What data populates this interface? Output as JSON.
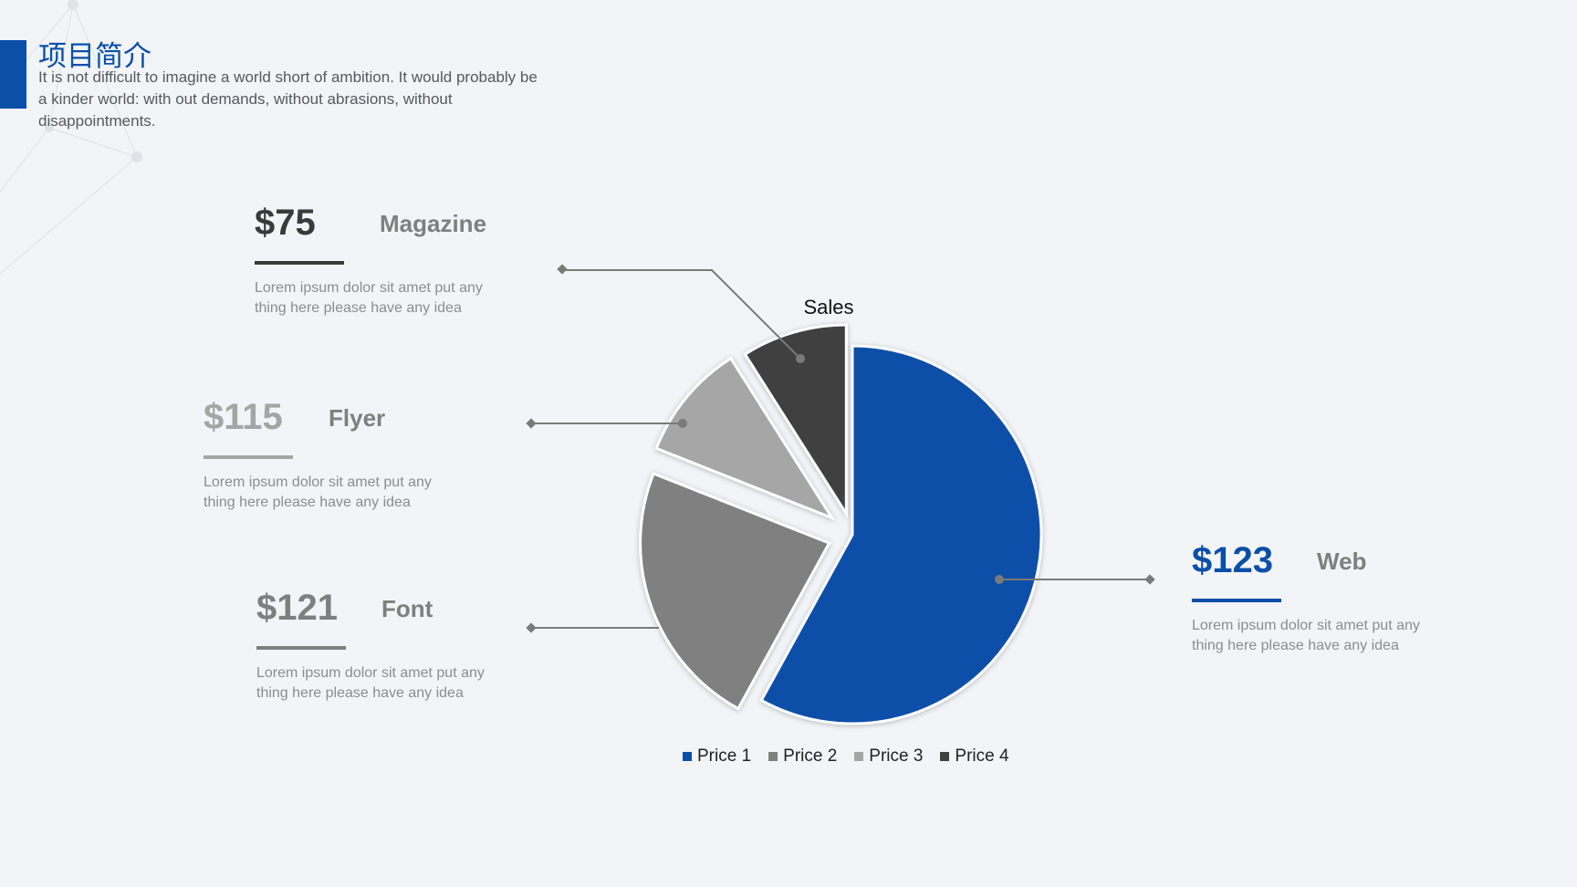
{
  "slide": {
    "title": "项目简介",
    "intro": "It is not difficult to imagine a world short of ambition. It would probably be a kinder world: with out demands, without abrasions, without disappointments."
  },
  "blocks": [
    {
      "id": "magazine",
      "price": "$75",
      "name": "Magazine",
      "desc": "Lorem ipsum dolor sit amet put any thing here please have any idea",
      "price_color": "#3a3a3a",
      "name_color": "#7f7f7f",
      "rule_color": "#3a3a3a"
    },
    {
      "id": "flyer",
      "price": "$115",
      "name": "Flyer",
      "desc": "Lorem ipsum dolor sit amet put any thing here please have any idea",
      "price_color": "#a5a5a5",
      "name_color": "#7f7f7f",
      "rule_color": "#a5a5a5"
    },
    {
      "id": "font",
      "price": "$121",
      "name": "Font",
      "desc": "Lorem ipsum dolor sit amet put any thing here please have any idea",
      "price_color": "#7f7f7f",
      "name_color": "#7f7f7f",
      "rule_color": "#7f7f7f"
    },
    {
      "id": "web",
      "price": "$123",
      "name": "Web",
      "desc": "Lorem ipsum dolor sit amet put any thing here please have any idea",
      "price_color": "#0b4fa8",
      "name_color": "#7f7f7f",
      "rule_color": "#0b4fa8"
    }
  ],
  "chart_data": {
    "type": "pie",
    "title": "Sales",
    "categories": [
      "Price 1",
      "Price 2",
      "Price 3",
      "Price 4"
    ],
    "values": [
      58,
      23,
      10,
      9
    ],
    "colors": [
      "#0b4fa8",
      "#808080",
      "#a6a6a6",
      "#404040"
    ],
    "exploded": true,
    "legend_position": "bottom"
  }
}
